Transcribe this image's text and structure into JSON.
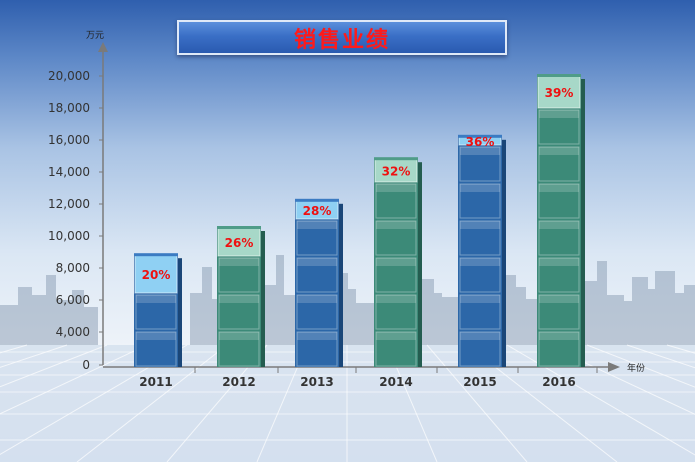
{
  "title": "销售业绩",
  "chart_data": {
    "type": "bar",
    "title": "销售业绩",
    "ylabel": "万元",
    "xlabel": "年份",
    "ylim": [
      0,
      20000
    ],
    "yticks": [
      0,
      4000,
      6000,
      8000,
      10000,
      12000,
      14000,
      16000,
      18000,
      20000
    ],
    "ytick_labels": [
      "0",
      "4,000",
      "6,000",
      "8,000",
      "10,000",
      "12,000",
      "14,000",
      "16,000",
      "18,000",
      "20,000"
    ],
    "categories": [
      "2011",
      "2012",
      "2013",
      "2014",
      "2015",
      "2016"
    ],
    "values": [
      8800,
      10500,
      12200,
      14800,
      16200,
      20000
    ],
    "data_labels": [
      "20%",
      "26%",
      "28%",
      "32%",
      "36%",
      "39%"
    ],
    "colors": [
      "#2c67a8",
      "#3c8a78",
      "#2c67a8",
      "#3c8a78",
      "#2c67a8",
      "#3c8a78"
    ],
    "label_color": "#ee1111",
    "grid": false,
    "legend": "none"
  }
}
